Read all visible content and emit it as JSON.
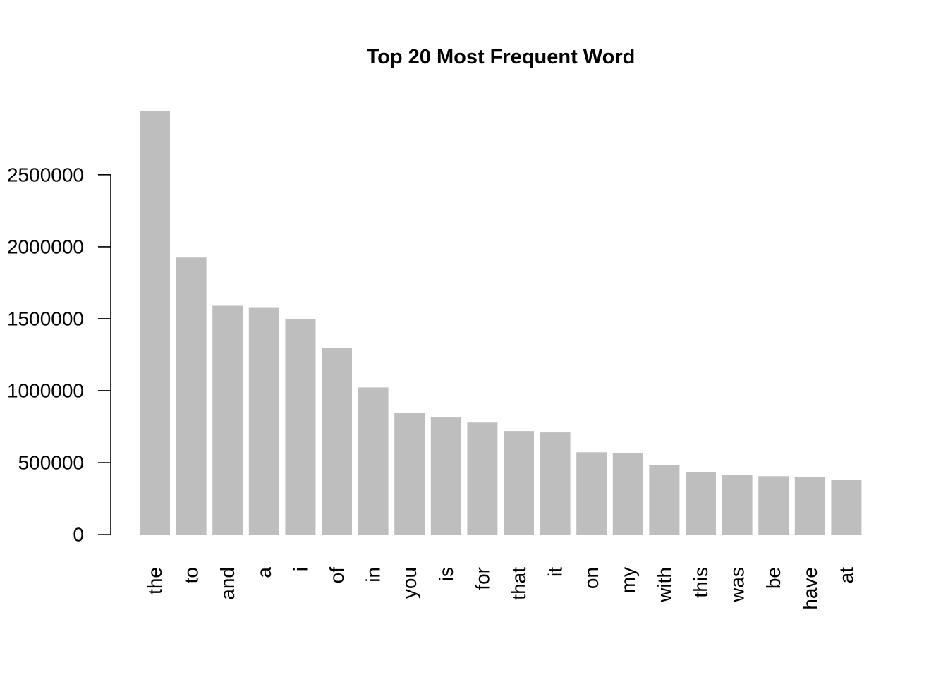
{
  "chart_data": {
    "type": "bar",
    "title": "Top 20 Most Frequent Word",
    "xlabel": "",
    "ylabel": "",
    "categories": [
      "the",
      "to",
      "and",
      "a",
      "i",
      "of",
      "in",
      "you",
      "is",
      "for",
      "that",
      "it",
      "on",
      "my",
      "with",
      "this",
      "was",
      "be",
      "have",
      "at"
    ],
    "values": [
      2945000,
      1925000,
      1590000,
      1575000,
      1498000,
      1298000,
      1022000,
      846000,
      813000,
      778000,
      720000,
      710000,
      572000,
      566000,
      481000,
      432000,
      415000,
      405000,
      400000,
      378000
    ],
    "ylim": [
      0,
      2945000
    ],
    "yticks": [
      0,
      500000,
      1000000,
      1500000,
      2000000,
      2500000
    ],
    "ytick_labels": [
      "0",
      "500000",
      "1000000",
      "1500000",
      "2000000",
      "2500000"
    ],
    "bar_color": "#bebebe",
    "grid": false,
    "legend": "none"
  }
}
